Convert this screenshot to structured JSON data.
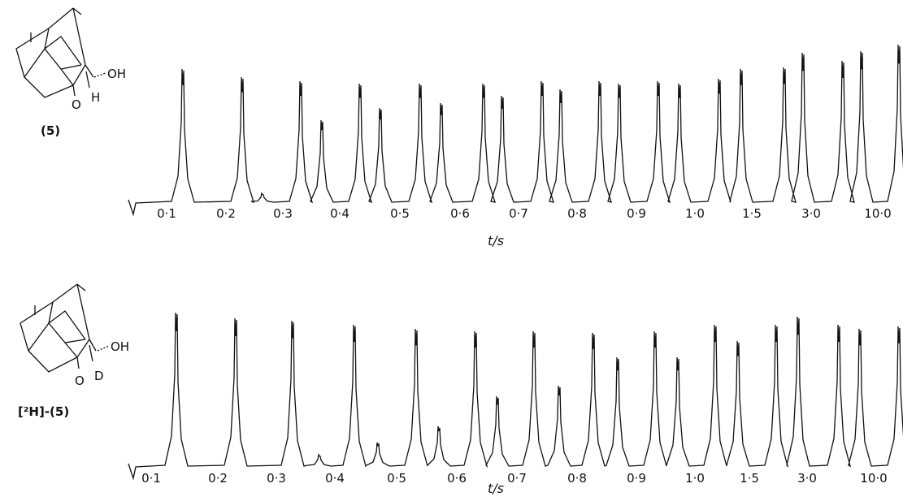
{
  "panels": [
    {
      "compound": {
        "label": "(5)",
        "substituents": [
          "OH",
          "H",
          "O"
        ]
      },
      "time_labels": [
        "0·1",
        "0·2",
        "0·3",
        "0·4",
        "0·5",
        "0·6",
        "0·7",
        "0·8",
        "0·9",
        "1·0",
        "1·5",
        "3·0",
        "10·0"
      ],
      "axis_label": "t/s"
    },
    {
      "compound": {
        "label": "[²H]-(5)",
        "substituents": [
          "OH",
          "D",
          "O"
        ]
      },
      "time_labels": [
        "0·1",
        "0·2",
        "0·3",
        "0·4",
        "0·5",
        "0·6",
        "0·7",
        "0·8",
        "0·9",
        "1·0",
        "1·5",
        "3·0",
        "10·0"
      ],
      "axis_label": "t/s"
    }
  ]
}
